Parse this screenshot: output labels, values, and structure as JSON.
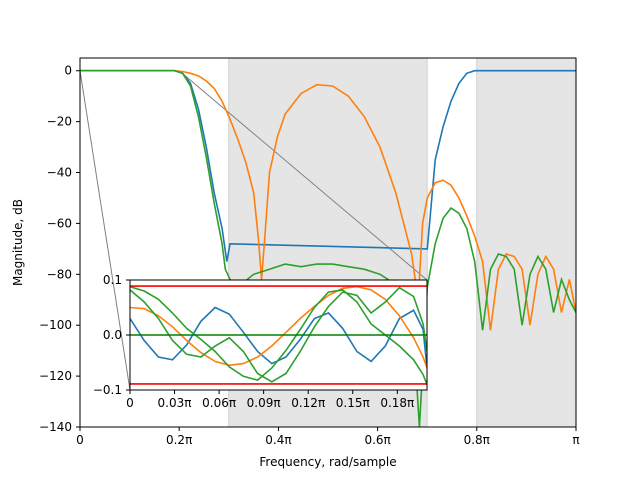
{
  "chart_data": [
    {
      "type": "line",
      "title": "",
      "xlabel": "Frequency, rad/sample",
      "ylabel": "Magnitude, dB",
      "xlim": [
        0,
        3.14159
      ],
      "ylim": [
        -140,
        5
      ],
      "x_ticks": [
        0,
        0.628,
        1.257,
        1.885,
        2.513,
        3.14159
      ],
      "x_tick_labels": [
        "0",
        "0.2π",
        "0.4π",
        "0.6π",
        "0.8π",
        "π"
      ],
      "y_ticks": [
        0,
        -20,
        -40,
        -60,
        -80,
        -100,
        -120,
        -140
      ],
      "y_tick_labels": [
        "0",
        "−20",
        "−40",
        "−60",
        "−80",
        "−100",
        "−120",
        "−140"
      ],
      "shaded_bands": [
        [
          0.942,
          2.199
        ],
        [
          2.513,
          3.14159
        ]
      ],
      "grid": false,
      "series": [
        {
          "color": "#1f77b4",
          "x": [
            0,
            0.3,
            0.5,
            0.6,
            0.65,
            0.7,
            0.75,
            0.8,
            0.85,
            0.9,
            0.93,
            0.95,
            2.2,
            2.25,
            2.3,
            2.35,
            2.4,
            2.45,
            2.5,
            2.55,
            2.6,
            2.7,
            3.14159
          ],
          "values": [
            0,
            0,
            0,
            0,
            -1,
            -5,
            -15,
            -30,
            -48,
            -62,
            -75,
            -68,
            -70,
            -35,
            -22,
            -12,
            -5,
            -1,
            0,
            0,
            0,
            0,
            0
          ]
        },
        {
          "color": "#ff7f0e",
          "x": [
            0,
            0.3,
            0.5,
            0.6,
            0.65,
            0.7,
            0.75,
            0.8,
            0.85,
            0.9,
            0.95,
            1.0,
            1.05,
            1.1,
            1.13,
            1.15,
            1.17,
            1.2,
            1.25,
            1.3,
            1.4,
            1.5,
            1.6,
            1.7,
            1.8,
            1.9,
            2.0,
            2.05,
            2.1,
            2.13,
            2.15,
            2.17,
            2.2,
            2.25,
            2.3,
            2.35,
            2.4,
            2.45,
            2.5,
            2.55,
            2.6,
            2.65,
            2.7,
            2.75,
            2.8,
            2.85,
            2.9,
            2.95,
            3.0,
            3.05,
            3.1,
            3.14159
          ],
          "values": [
            0,
            0,
            0,
            0,
            -0.3,
            -1,
            -2,
            -4,
            -7,
            -12,
            -19,
            -27,
            -36,
            -48,
            -66,
            -82,
            -66,
            -40,
            -26,
            -17,
            -9,
            -5.5,
            -6,
            -10,
            -18,
            -30,
            -48,
            -60,
            -72,
            -85,
            -82,
            -60,
            -50,
            -44,
            -43,
            -45,
            -50,
            -57,
            -65,
            -75,
            -102,
            -78,
            -72,
            -73,
            -78,
            -100,
            -80,
            -73,
            -78,
            -95,
            -82,
            -95
          ]
        },
        {
          "color": "#2ca02c",
          "x": [
            0,
            0.3,
            0.5,
            0.6,
            0.65,
            0.7,
            0.75,
            0.8,
            0.85,
            0.9,
            0.92,
            0.95,
            1.0,
            1.1,
            1.2,
            1.3,
            1.4,
            1.5,
            1.6,
            1.7,
            1.8,
            1.9,
            2.0,
            2.1,
            2.15,
            2.2,
            2.25,
            2.3,
            2.35,
            2.4,
            2.45,
            2.5,
            2.55,
            2.6,
            2.65,
            2.7,
            2.75,
            2.8,
            2.85,
            2.9,
            2.95,
            3.0,
            3.05,
            3.1,
            3.14159
          ],
          "values": [
            0,
            0,
            0,
            0,
            -1,
            -6,
            -18,
            -34,
            -52,
            -68,
            -78,
            -82,
            -85,
            -80,
            -78,
            -76,
            -77,
            -76,
            -76,
            -77,
            -78,
            -80,
            -84,
            -90,
            -140,
            -85,
            -68,
            -58,
            -54,
            -56,
            -62,
            -75,
            -102,
            -78,
            -72,
            -73,
            -78,
            -100,
            -80,
            -73,
            -78,
            -95,
            -82,
            -90,
            -95
          ]
        }
      ]
    },
    {
      "type": "line",
      "title": "",
      "xlabel": "",
      "ylabel": "",
      "xlim": [
        0,
        0.6283
      ],
      "ylim": [
        -0.1,
        0.1
      ],
      "x_ticks": [
        0,
        0.0942,
        0.1885,
        0.2827,
        0.377,
        0.4712,
        0.5655
      ],
      "x_tick_labels": [
        "0",
        "0.03π",
        "0.06π",
        "0.09π",
        "0.12π",
        "0.15π",
        "0.18π"
      ],
      "y_ticks": [
        0.1,
        0.0,
        -0.1
      ],
      "y_tick_labels": [
        "0.1",
        "0.0",
        "−0.1"
      ],
      "reference_lines": [
        {
          "y": 0.089,
          "color": "#ff0000"
        },
        {
          "y": -0.089,
          "color": "#ff0000"
        },
        {
          "y": 0.0,
          "color": "#008000"
        }
      ],
      "series": [
        {
          "color": "#1f77b4",
          "x": [
            0,
            0.03,
            0.06,
            0.09,
            0.12,
            0.15,
            0.18,
            0.21,
            0.24,
            0.27,
            0.3,
            0.33,
            0.36,
            0.39,
            0.42,
            0.45,
            0.48,
            0.51,
            0.54,
            0.57,
            0.6,
            0.62,
            0.6283
          ],
          "values": [
            0.03,
            -0.01,
            -0.04,
            -0.045,
            -0.018,
            0.025,
            0.05,
            0.038,
            0.005,
            -0.03,
            -0.052,
            -0.04,
            -0.008,
            0.03,
            0.04,
            0.012,
            -0.03,
            -0.048,
            -0.02,
            0.03,
            0.045,
            0.01,
            -0.06
          ]
        },
        {
          "color": "#ff7f0e",
          "x": [
            0,
            0.03,
            0.06,
            0.09,
            0.12,
            0.15,
            0.18,
            0.21,
            0.24,
            0.27,
            0.3,
            0.33,
            0.36,
            0.39,
            0.42,
            0.45,
            0.48,
            0.51,
            0.54,
            0.57,
            0.6,
            0.62,
            0.6283
          ],
          "values": [
            0.05,
            0.048,
            0.035,
            0.015,
            -0.01,
            -0.032,
            -0.048,
            -0.055,
            -0.052,
            -0.04,
            -0.02,
            0.005,
            0.03,
            0.052,
            0.072,
            0.085,
            0.088,
            0.082,
            0.065,
            0.035,
            -0.005,
            -0.04,
            -0.06
          ]
        },
        {
          "color": "#2ca02c",
          "x": [
            0,
            0.03,
            0.06,
            0.09,
            0.12,
            0.15,
            0.18,
            0.21,
            0.24,
            0.27,
            0.3,
            0.33,
            0.36,
            0.39,
            0.42,
            0.45,
            0.48,
            0.51,
            0.54,
            0.57,
            0.6,
            0.62,
            0.6283
          ],
          "values": [
            0.088,
            0.08,
            0.065,
            0.04,
            0.012,
            -0.008,
            -0.03,
            -0.058,
            -0.075,
            -0.082,
            -0.06,
            -0.028,
            0.01,
            0.05,
            0.078,
            0.082,
            0.06,
            0.02,
            0.0,
            -0.02,
            -0.045,
            -0.072,
            -0.09
          ]
        },
        {
          "color": "#2ca02c",
          "x": [
            0,
            0.03,
            0.06,
            0.09,
            0.12,
            0.15,
            0.18,
            0.21,
            0.24,
            0.27,
            0.3,
            0.33,
            0.36,
            0.39,
            0.42,
            0.45,
            0.48,
            0.51,
            0.54,
            0.57,
            0.6,
            0.62,
            0.6283
          ],
          "values": [
            0.082,
            0.06,
            0.03,
            -0.01,
            -0.035,
            -0.04,
            -0.02,
            -0.005,
            -0.03,
            -0.07,
            -0.085,
            -0.07,
            -0.03,
            0.015,
            0.052,
            0.078,
            0.072,
            0.04,
            0.06,
            0.086,
            0.07,
            0.02,
            -0.03
          ]
        }
      ]
    }
  ]
}
